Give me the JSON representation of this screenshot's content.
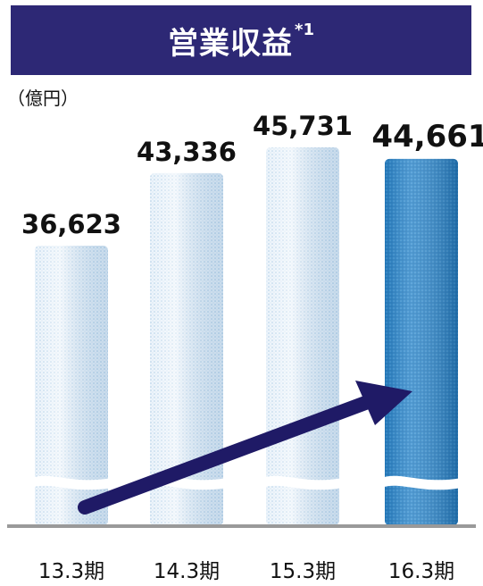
{
  "title": {
    "text": "営業収益",
    "superscript": "*1"
  },
  "unit": "（億円）",
  "colors": {
    "title_bg": "#2d2875",
    "bar_light": "#dbeaf6",
    "bar_highlight": "#2a84c8",
    "arrow": "#1f1a66",
    "baseline": "#9a9a9a"
  },
  "chart_data": {
    "type": "bar",
    "title": "営業収益*1",
    "ylabel": "（億円）",
    "xlabel": "",
    "categories": [
      "13.3期",
      "14.3期",
      "15.3期",
      "16.3期"
    ],
    "values": [
      36623,
      43336,
      45731,
      44661
    ],
    "value_labels": [
      "36,623",
      "43,336",
      "45,731",
      "44,661"
    ],
    "highlight_index": 3,
    "axis_break": true,
    "trend_arrow": true,
    "legend": "none",
    "grid": false
  }
}
